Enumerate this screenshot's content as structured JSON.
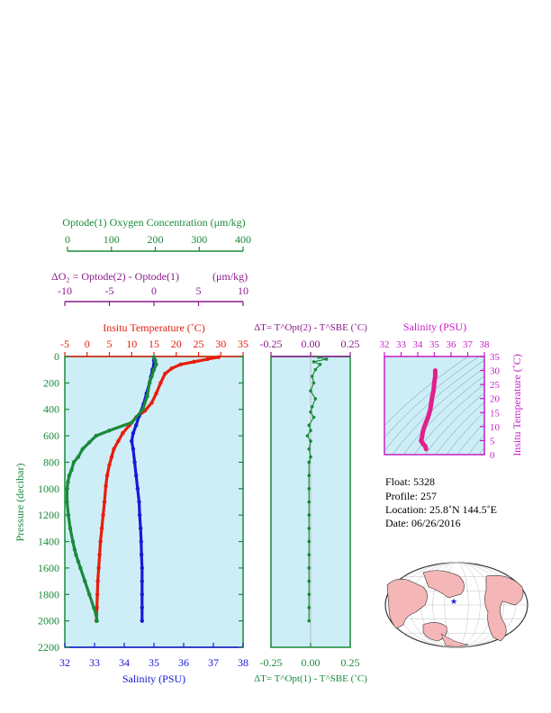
{
  "oxygen_axis": {
    "label": "Optode(1) Oxygen Concentration (μm/kg)",
    "ticks": [
      "0",
      "100",
      "200",
      "300",
      "400"
    ],
    "color": "#1a8a3a"
  },
  "delta_o2_axis": {
    "label_main": "ΔO₂ = Optode(2) - Optode(1)",
    "label_unit": "(μm/kg)",
    "ticks": [
      "-10",
      "-5",
      "0",
      "5",
      "10"
    ],
    "color": "#8b1a8b"
  },
  "main_panel": {
    "temp_label": "Insitu Temperature (˚C)",
    "temp_ticks": [
      "-5",
      "0",
      "5",
      "10",
      "15",
      "20",
      "25",
      "30",
      "35"
    ],
    "salinity_label": "Salinity (PSU)",
    "salinity_ticks": [
      "32",
      "33",
      "34",
      "35",
      "36",
      "37",
      "38"
    ],
    "pressure_label": "Pressure (decibar)",
    "pressure_ticks": [
      "0",
      "200",
      "400",
      "600",
      "800",
      "1000",
      "1200",
      "1400",
      "1600",
      "1800",
      "2000",
      "2200"
    ]
  },
  "dt_panel": {
    "top_label": "ΔT= T^Opt(2) - T^SBE (˚C)",
    "bottom_label": "ΔT= T^Opt(1) - T^SBE (˚C)",
    "ticks": [
      "-0.25",
      "0.00",
      "0.25"
    ]
  },
  "ts_panel": {
    "salinity_label": "Salinity (PSU)",
    "salinity_ticks": [
      "32",
      "33",
      "34",
      "35",
      "36",
      "37",
      "38"
    ],
    "temp_label": "Insitu Temperature (˚C)",
    "temp_ticks": [
      "0",
      "5",
      "10",
      "15",
      "20",
      "25",
      "30",
      "35"
    ]
  },
  "info": {
    "float": "Float:  5328",
    "profile": "Profile:  257",
    "location": "Location:  25.8˚N  144.5˚E",
    "date": "Date:  06/26/2016"
  },
  "footer_note": "",
  "colors": {
    "panel_bg": "#cdeef6",
    "temperature": "#e81c0c",
    "salinity": "#1818d8",
    "oxygen": "#1a8a3a",
    "ts_curve": "#e0208c",
    "ts_label": "#c81ec8"
  },
  "chart_data": {
    "type": "line",
    "y_axis": {
      "label": "Pressure (decibar)",
      "range": [
        0,
        2200
      ],
      "inverted": true
    },
    "series": [
      {
        "name": "Insitu Temperature (˚C)",
        "x_range": [
          -5,
          35
        ],
        "points": [
          [
            29.5,
            5
          ],
          [
            27,
            20
          ],
          [
            24,
            40
          ],
          [
            21,
            60
          ],
          [
            19,
            90
          ],
          [
            17.5,
            130
          ],
          [
            16.5,
            200
          ],
          [
            15.5,
            280
          ],
          [
            14.5,
            350
          ],
          [
            13,
            410
          ],
          [
            11,
            460
          ],
          [
            9.5,
            520
          ],
          [
            8,
            580
          ],
          [
            7,
            640
          ],
          [
            6,
            700
          ],
          [
            5.5,
            760
          ],
          [
            5,
            820
          ],
          [
            4.5,
            900
          ],
          [
            4.2,
            980
          ],
          [
            3.9,
            1100
          ],
          [
            3.6,
            1200
          ],
          [
            3.3,
            1300
          ],
          [
            3.0,
            1400
          ],
          [
            2.8,
            1500
          ],
          [
            2.6,
            1600
          ],
          [
            2.4,
            1700
          ],
          [
            2.3,
            1800
          ],
          [
            2.2,
            1900
          ],
          [
            2.1,
            2000
          ]
        ]
      },
      {
        "name": "Salinity (PSU)",
        "x_range": [
          32,
          38
        ],
        "points": [
          [
            35.0,
            5
          ],
          [
            35.0,
            30
          ],
          [
            35.0,
            60
          ],
          [
            34.95,
            100
          ],
          [
            34.9,
            150
          ],
          [
            34.85,
            200
          ],
          [
            34.75,
            280
          ],
          [
            34.65,
            360
          ],
          [
            34.5,
            450
          ],
          [
            34.4,
            520
          ],
          [
            34.3,
            580
          ],
          [
            34.25,
            640
          ],
          [
            34.3,
            700
          ],
          [
            34.35,
            800
          ],
          [
            34.4,
            900
          ],
          [
            34.45,
            1000
          ],
          [
            34.5,
            1100
          ],
          [
            34.52,
            1200
          ],
          [
            34.55,
            1300
          ],
          [
            34.57,
            1400
          ],
          [
            34.58,
            1500
          ],
          [
            34.6,
            1600
          ],
          [
            34.6,
            1700
          ],
          [
            34.6,
            1800
          ],
          [
            34.6,
            1900
          ],
          [
            34.6,
            2000
          ]
        ]
      },
      {
        "name": "Optode(1) Oxygen Concentration (μm/kg)",
        "x_range": [
          0,
          400
        ],
        "points": [
          [
            200,
            5
          ],
          [
            203,
            30
          ],
          [
            205,
            60
          ],
          [
            200,
            100
          ],
          [
            195,
            150
          ],
          [
            190,
            200
          ],
          [
            185,
            300
          ],
          [
            175,
            400
          ],
          [
            150,
            500
          ],
          [
            100,
            560
          ],
          [
            70,
            600
          ],
          [
            55,
            650
          ],
          [
            40,
            700
          ],
          [
            30,
            760
          ],
          [
            20,
            800
          ],
          [
            15,
            860
          ],
          [
            10,
            900
          ],
          [
            7,
            950
          ],
          [
            5,
            1000
          ],
          [
            5,
            1100
          ],
          [
            8,
            1200
          ],
          [
            12,
            1300
          ],
          [
            18,
            1400
          ],
          [
            22,
            1460
          ],
          [
            25,
            1500
          ],
          [
            30,
            1550
          ],
          [
            35,
            1600
          ],
          [
            45,
            1700
          ],
          [
            55,
            1800
          ],
          [
            65,
            1900
          ],
          [
            70,
            1950
          ],
          [
            72,
            2000
          ]
        ]
      }
    ],
    "dt_series": {
      "name": "ΔT= T^Opt(1) - T^SBE (˚C)",
      "x_range": [
        -0.25,
        0.25
      ],
      "points": [
        [
          0.05,
          5
        ],
        [
          0.1,
          20
        ],
        [
          0.02,
          40
        ],
        [
          0.06,
          60
        ],
        [
          0.03,
          100
        ],
        [
          0.01,
          150
        ],
        [
          0.02,
          200
        ],
        [
          0.0,
          260
        ],
        [
          0.03,
          320
        ],
        [
          0.01,
          380
        ],
        [
          0.0,
          420
        ],
        [
          0.02,
          460
        ],
        [
          -0.01,
          520
        ],
        [
          0.0,
          560
        ],
        [
          -0.02,
          600
        ],
        [
          0.0,
          640
        ],
        [
          -0.01,
          700
        ],
        [
          0.0,
          760
        ],
        [
          -0.01,
          800
        ],
        [
          -0.01,
          900
        ],
        [
          -0.01,
          1000
        ],
        [
          -0.01,
          1100
        ],
        [
          -0.01,
          1200
        ],
        [
          -0.01,
          1300
        ],
        [
          -0.01,
          1400
        ],
        [
          -0.01,
          1500
        ],
        [
          -0.01,
          1600
        ],
        [
          -0.01,
          1700
        ],
        [
          -0.01,
          1800
        ],
        [
          -0.01,
          1900
        ],
        [
          -0.01,
          2000
        ]
      ]
    },
    "ts_curve": {
      "x_range": [
        32,
        38
      ],
      "y_range": [
        0,
        35
      ],
      "points": [
        [
          34.5,
          2
        ],
        [
          34.45,
          3
        ],
        [
          34.3,
          4
        ],
        [
          34.2,
          5
        ],
        [
          34.25,
          6
        ],
        [
          34.3,
          8
        ],
        [
          34.4,
          10
        ],
        [
          34.6,
          13
        ],
        [
          34.75,
          16
        ],
        [
          34.85,
          20
        ],
        [
          34.95,
          23
        ],
        [
          35.0,
          26
        ],
        [
          35.05,
          28
        ],
        [
          35.05,
          30
        ]
      ]
    }
  }
}
